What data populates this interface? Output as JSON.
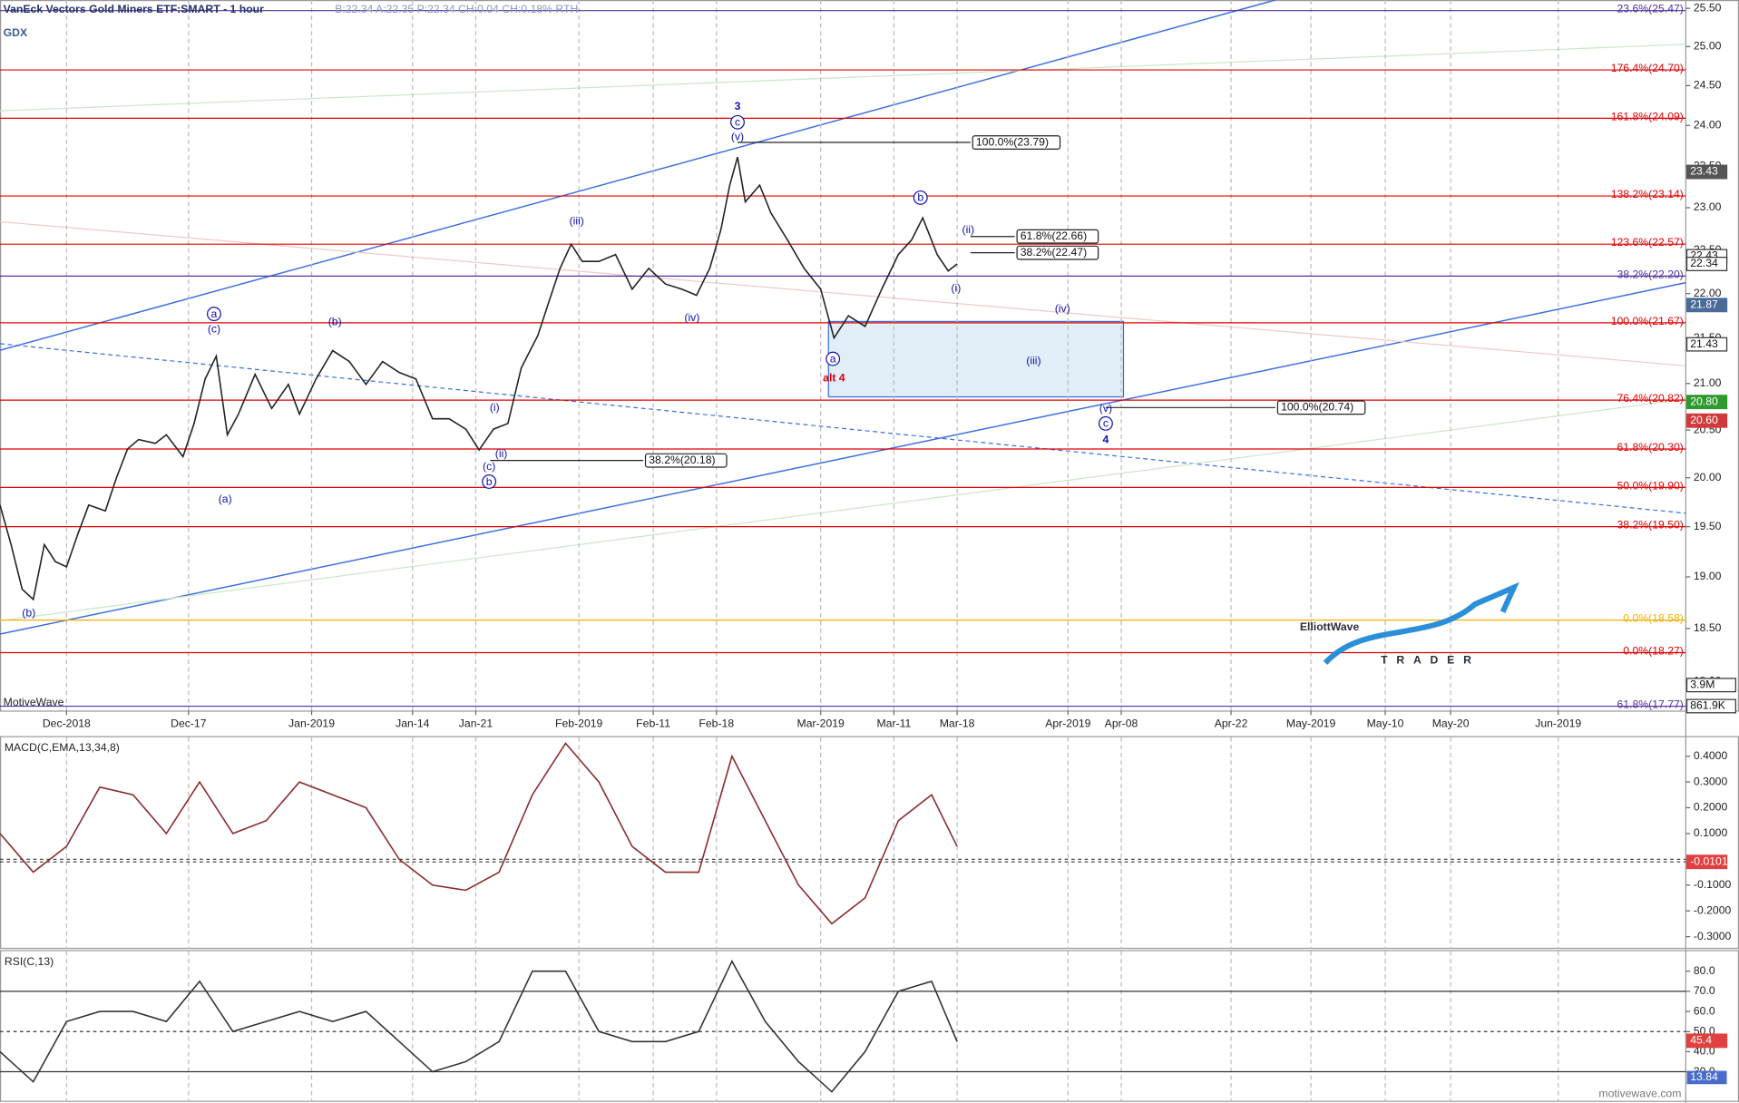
{
  "header": {
    "title": "VanEck Vectors Gold Miners ETF:SMART - 1 hour",
    "quote": "B:22.34 A:22.35 P:22.34 CH:0.04 CH:0.18% RTH",
    "symbol": "GDX",
    "brand": "MotiveWave",
    "footer": "motivewave.com",
    "logo_main": "ElliottWave",
    "logo_sub": "TRADER"
  },
  "chart_data": [
    {
      "type": "line",
      "name": "price",
      "log_scale": true,
      "color": "#222222",
      "x": [
        0,
        10,
        20,
        30,
        40,
        50,
        60,
        70,
        80,
        95,
        105,
        115,
        125,
        140,
        150,
        165,
        175,
        185,
        195,
        205,
        215,
        230,
        245,
        260,
        270,
        285,
        300,
        315,
        330,
        345,
        360,
        375,
        390,
        405,
        420,
        432,
        445,
        458,
        470,
        485,
        495,
        505,
        515,
        525,
        540,
        555,
        570,
        585,
        600,
        615,
        628,
        640,
        650,
        658,
        665,
        672,
        685,
        695,
        710,
        725,
        740,
        752,
        765,
        780,
        795,
        810,
        822,
        832,
        845,
        855,
        863
      ],
      "values": [
        19.72,
        19.32,
        18.88,
        18.78,
        19.32,
        19.15,
        19.1,
        19.42,
        19.72,
        19.66,
        20.0,
        20.3,
        20.4,
        20.36,
        20.45,
        20.22,
        20.57,
        21.05,
        21.3,
        20.45,
        20.67,
        21.1,
        20.73,
        20.99,
        20.67,
        21.05,
        21.36,
        21.24,
        20.99,
        21.24,
        21.12,
        21.05,
        20.62,
        20.62,
        20.51,
        20.29,
        20.51,
        20.57,
        21.17,
        21.53,
        21.91,
        22.29,
        22.57,
        22.37,
        22.37,
        22.45,
        22.05,
        22.29,
        22.11,
        22.05,
        21.98,
        22.29,
        22.74,
        23.27,
        23.61,
        23.07,
        23.27,
        22.94,
        22.62,
        22.29,
        22.05,
        21.5,
        21.75,
        21.63,
        22.05,
        22.45,
        22.62,
        22.88,
        22.45,
        22.26,
        22.34
      ],
      "xlim": [
        0,
        1520
      ],
      "ylim": [
        17.73,
        25.61
      ],
      "xticks": [
        {
          "value": 60,
          "label": "Dec-2018"
        },
        {
          "value": 170,
          "label": "Dec-17"
        },
        {
          "value": 281,
          "label": "Jan-2019"
        },
        {
          "value": 372,
          "label": "Jan-14"
        },
        {
          "value": 429,
          "label": "Jan-21"
        },
        {
          "value": 522,
          "label": "Feb-2019"
        },
        {
          "value": 589,
          "label": "Feb-11"
        },
        {
          "value": 646,
          "label": "Feb-18"
        },
        {
          "value": 740,
          "label": "Mar-2019"
        },
        {
          "value": 806,
          "label": "Mar-11"
        },
        {
          "value": 863,
          "label": "Mar-18"
        },
        {
          "value": 963,
          "label": "Apr-2019"
        },
        {
          "value": 1011,
          "label": "Apr-08"
        },
        {
          "value": 1110,
          "label": "Apr-22"
        },
        {
          "value": 1182,
          "label": "May-2019"
        },
        {
          "value": 1249,
          "label": "May-10"
        },
        {
          "value": 1308,
          "label": "May-20"
        },
        {
          "value": 1405,
          "label": "Jun-2019"
        }
      ],
      "yticks": [
        {
          "value": 25.5,
          "label": "25.50"
        },
        {
          "value": 25,
          "label": "25.00"
        },
        {
          "value": 24.5,
          "label": "24.50"
        },
        {
          "value": 24,
          "label": "24.00"
        },
        {
          "value": 23.5,
          "label": "23.50"
        },
        {
          "value": 23,
          "label": "23.00"
        },
        {
          "value": 22.5,
          "label": "22.50"
        },
        {
          "value": 22,
          "label": "22.00"
        },
        {
          "value": 21.5,
          "label": "21.50"
        },
        {
          "value": 21,
          "label": "21.00"
        },
        {
          "value": 20.5,
          "label": "20.50"
        },
        {
          "value": 20,
          "label": "20.00"
        },
        {
          "value": 19.5,
          "label": "19.50"
        },
        {
          "value": 19,
          "label": "19.00"
        },
        {
          "value": 18.5,
          "label": "18.50"
        },
        {
          "value": 18,
          "label": "18.00"
        }
      ],
      "fib_levels": [
        {
          "value": 25.47,
          "label": "23.6%(25.47)",
          "color": "#5030a0"
        },
        {
          "value": 24.7,
          "label": "176.4%(24.70)",
          "color": "#e00000"
        },
        {
          "value": 24.09,
          "label": "161.8%(24.09)",
          "color": "#e00000"
        },
        {
          "value": 23.14,
          "label": "138.2%(23.14)",
          "color": "#e00000"
        },
        {
          "value": 22.57,
          "label": "123.6%(22.57)",
          "color": "#e00000"
        },
        {
          "value": 22.2,
          "label": "38.2%(22.20)",
          "color": "#5030a0"
        },
        {
          "value": 21.67,
          "label": "100.0%(21.67)",
          "color": "#e00000"
        },
        {
          "value": 20.82,
          "label": "76.4%(20.82)",
          "color": "#e00000"
        },
        {
          "value": 20.3,
          "label": "61.8%(20.30)",
          "color": "#e00000"
        },
        {
          "value": 19.9,
          "label": "50.0%(19.90)",
          "color": "#e00000"
        },
        {
          "value": 19.5,
          "label": "38.2%(19.50)",
          "color": "#e00000"
        },
        {
          "value": 18.58,
          "label": "0.0%(18.58)",
          "color": "#f0b000"
        },
        {
          "value": 18.27,
          "label": "0.0%(18.27)",
          "color": "#e00000"
        },
        {
          "value": 17.77,
          "label": "61.8%(17.77)",
          "color": "#5030a0"
        }
      ],
      "measures": [
        {
          "value": 23.79,
          "label": "100.0%(23.79)",
          "x0": 665,
          "x1": 875
        },
        {
          "value": 22.66,
          "label": "61.8%(22.66)",
          "x0": 875,
          "x1": 915
        },
        {
          "value": 22.47,
          "label": "38.2%(22.47)",
          "x0": 875,
          "x1": 915
        },
        {
          "value": 20.74,
          "label": "100.0%(20.74)",
          "x0": 997,
          "x1": 1150
        },
        {
          "value": 20.18,
          "label": "38.2%(20.18)",
          "x0": 442,
          "x1": 580
        }
      ],
      "axis_boxes": [
        {
          "value": 23.43,
          "label": "23.43",
          "color": "#555555"
        },
        {
          "value": 22.43,
          "label": "22.43",
          "color": "#ffffff"
        },
        {
          "value": 22.34,
          "label": "22.34",
          "color": "#ffffff"
        },
        {
          "value": 21.87,
          "label": "21.87",
          "color": "#4a6a9a"
        },
        {
          "value": 21.43,
          "label": "21.43",
          "color": "#ffffff"
        },
        {
          "value": 20.8,
          "label": "20.80",
          "color": "#2e9a2e"
        },
        {
          "value": 20.6,
          "label": "20.60",
          "color": "#d03a3a"
        }
      ],
      "volume_labels": [
        "3.9M",
        "861.9K"
      ],
      "annotations": [
        {
          "text": "3",
          "x": 665,
          "y": 24.24,
          "color": "#1010b0",
          "bold": true
        },
        {
          "text": "c",
          "x": 665,
          "y": 24.04,
          "color": "#1010b0",
          "circled": true
        },
        {
          "text": "(v)",
          "x": 665,
          "y": 23.86,
          "color": "#1010b0"
        },
        {
          "text": "b",
          "x": 830,
          "y": 23.12,
          "color": "#1010b0",
          "circled": true
        },
        {
          "text": "(ii)",
          "x": 873,
          "y": 22.74,
          "color": "#1010b0"
        },
        {
          "text": "(i)",
          "x": 862,
          "y": 22.06,
          "color": "#1010b0"
        },
        {
          "text": "(iv)",
          "x": 958,
          "y": 21.83,
          "color": "#1010b0"
        },
        {
          "text": "(iii)",
          "x": 932,
          "y": 21.25,
          "color": "#1010b0"
        },
        {
          "text": "a",
          "x": 751,
          "y": 21.27,
          "color": "#1010b0",
          "circled": true
        },
        {
          "text": "alt 4",
          "x": 752,
          "y": 21.06,
          "color": "#e00000",
          "bold": true
        },
        {
          "text": "(v)",
          "x": 997,
          "y": 20.73,
          "color": "#1010b0"
        },
        {
          "text": "c",
          "x": 997,
          "y": 20.57,
          "color": "#1010b0",
          "circled": true
        },
        {
          "text": "4",
          "x": 997,
          "y": 20.4,
          "color": "#1010b0",
          "bold": true
        },
        {
          "text": "(iii)",
          "x": 520,
          "y": 22.84,
          "color": "#1010b0"
        },
        {
          "text": "(iv)",
          "x": 624,
          "y": 21.73,
          "color": "#1010b0"
        },
        {
          "text": "a",
          "x": 193,
          "y": 21.77,
          "color": "#1010b0",
          "circled": true
        },
        {
          "text": "(c)",
          "x": 193,
          "y": 21.6,
          "color": "#1010b0"
        },
        {
          "text": "(b)",
          "x": 302,
          "y": 21.68,
          "color": "#1010b0"
        },
        {
          "text": "(i)",
          "x": 446,
          "y": 20.74,
          "color": "#1010b0"
        },
        {
          "text": "(ii)",
          "x": 452,
          "y": 20.25,
          "color": "#1010b0"
        },
        {
          "text": "(c)",
          "x": 441,
          "y": 20.12,
          "color": "#1010b0"
        },
        {
          "text": "b",
          "x": 441,
          "y": 19.96,
          "color": "#1010b0",
          "circled": true
        },
        {
          "text": "(a)",
          "x": 203,
          "y": 19.78,
          "color": "#1010b0"
        },
        {
          "text": "(b)",
          "x": 26,
          "y": 18.65,
          "color": "#1010b0"
        }
      ]
    },
    {
      "type": "line",
      "name": "macd",
      "title": "MACD(C,EMA,13,34,8)",
      "color": "#8a2a2a",
      "x": [
        0,
        30,
        60,
        90,
        120,
        150,
        180,
        210,
        240,
        270,
        300,
        330,
        360,
        390,
        420,
        450,
        480,
        510,
        540,
        570,
        600,
        630,
        660,
        690,
        720,
        750,
        780,
        810,
        840,
        863
      ],
      "values": [
        0.1,
        -0.05,
        0.05,
        0.28,
        0.25,
        0.1,
        0.3,
        0.1,
        0.15,
        0.3,
        0.25,
        0.2,
        0.0,
        -0.1,
        -0.12,
        -0.05,
        0.25,
        0.45,
        0.3,
        0.05,
        -0.05,
        -0.05,
        0.4,
        0.15,
        -0.1,
        -0.25,
        -0.15,
        0.15,
        0.25,
        0.05
      ],
      "xlim": [
        0,
        1520
      ],
      "ylim": [
        -0.3476,
        0.4736
      ],
      "yticks": [
        {
          "value": 0.4,
          "label": "0.4000"
        },
        {
          "value": 0.3,
          "label": "0.3000"
        },
        {
          "value": 0.2,
          "label": "0.2000"
        },
        {
          "value": 0.1,
          "label": "0.1000"
        },
        {
          "value": -0.1,
          "label": "-0.1000"
        },
        {
          "value": -0.2,
          "label": "-0.2000"
        },
        {
          "value": -0.3,
          "label": "-0.3000"
        }
      ],
      "levels": [
        0,
        -0.0101
      ],
      "axis_boxes": [
        {
          "value": -0.0101,
          "label": "-0.0101",
          "color": "#e04040"
        }
      ]
    },
    {
      "type": "line",
      "name": "rsi",
      "title": "RSI(C,13)",
      "color": "#333333",
      "x": [
        0,
        30,
        60,
        90,
        120,
        150,
        180,
        210,
        240,
        270,
        300,
        330,
        360,
        390,
        420,
        450,
        480,
        510,
        540,
        570,
        600,
        630,
        660,
        690,
        720,
        750,
        780,
        810,
        840,
        863
      ],
      "values": [
        40,
        25,
        55,
        60,
        60,
        55,
        75,
        50,
        55,
        60,
        55,
        60,
        45,
        30,
        35,
        45,
        80,
        80,
        50,
        45,
        45,
        50,
        85,
        55,
        35,
        20,
        40,
        70,
        75,
        45
      ],
      "xlim": [
        0,
        1520
      ],
      "ylim": [
        15,
        90
      ],
      "yticks": [
        {
          "value": 80,
          "label": "80.0"
        },
        {
          "value": 70,
          "label": "70.0"
        },
        {
          "value": 60,
          "label": "60.0"
        },
        {
          "value": 50,
          "label": "50.0"
        },
        {
          "value": 40,
          "label": "40.0"
        },
        {
          "value": 30,
          "label": "30.0"
        }
      ],
      "levels": [
        70,
        50,
        30
      ],
      "axis_boxes": [
        {
          "value": 45.4,
          "label": "45.4",
          "color": "#e04040"
        }
      ],
      "extra_label": "13.84"
    }
  ]
}
